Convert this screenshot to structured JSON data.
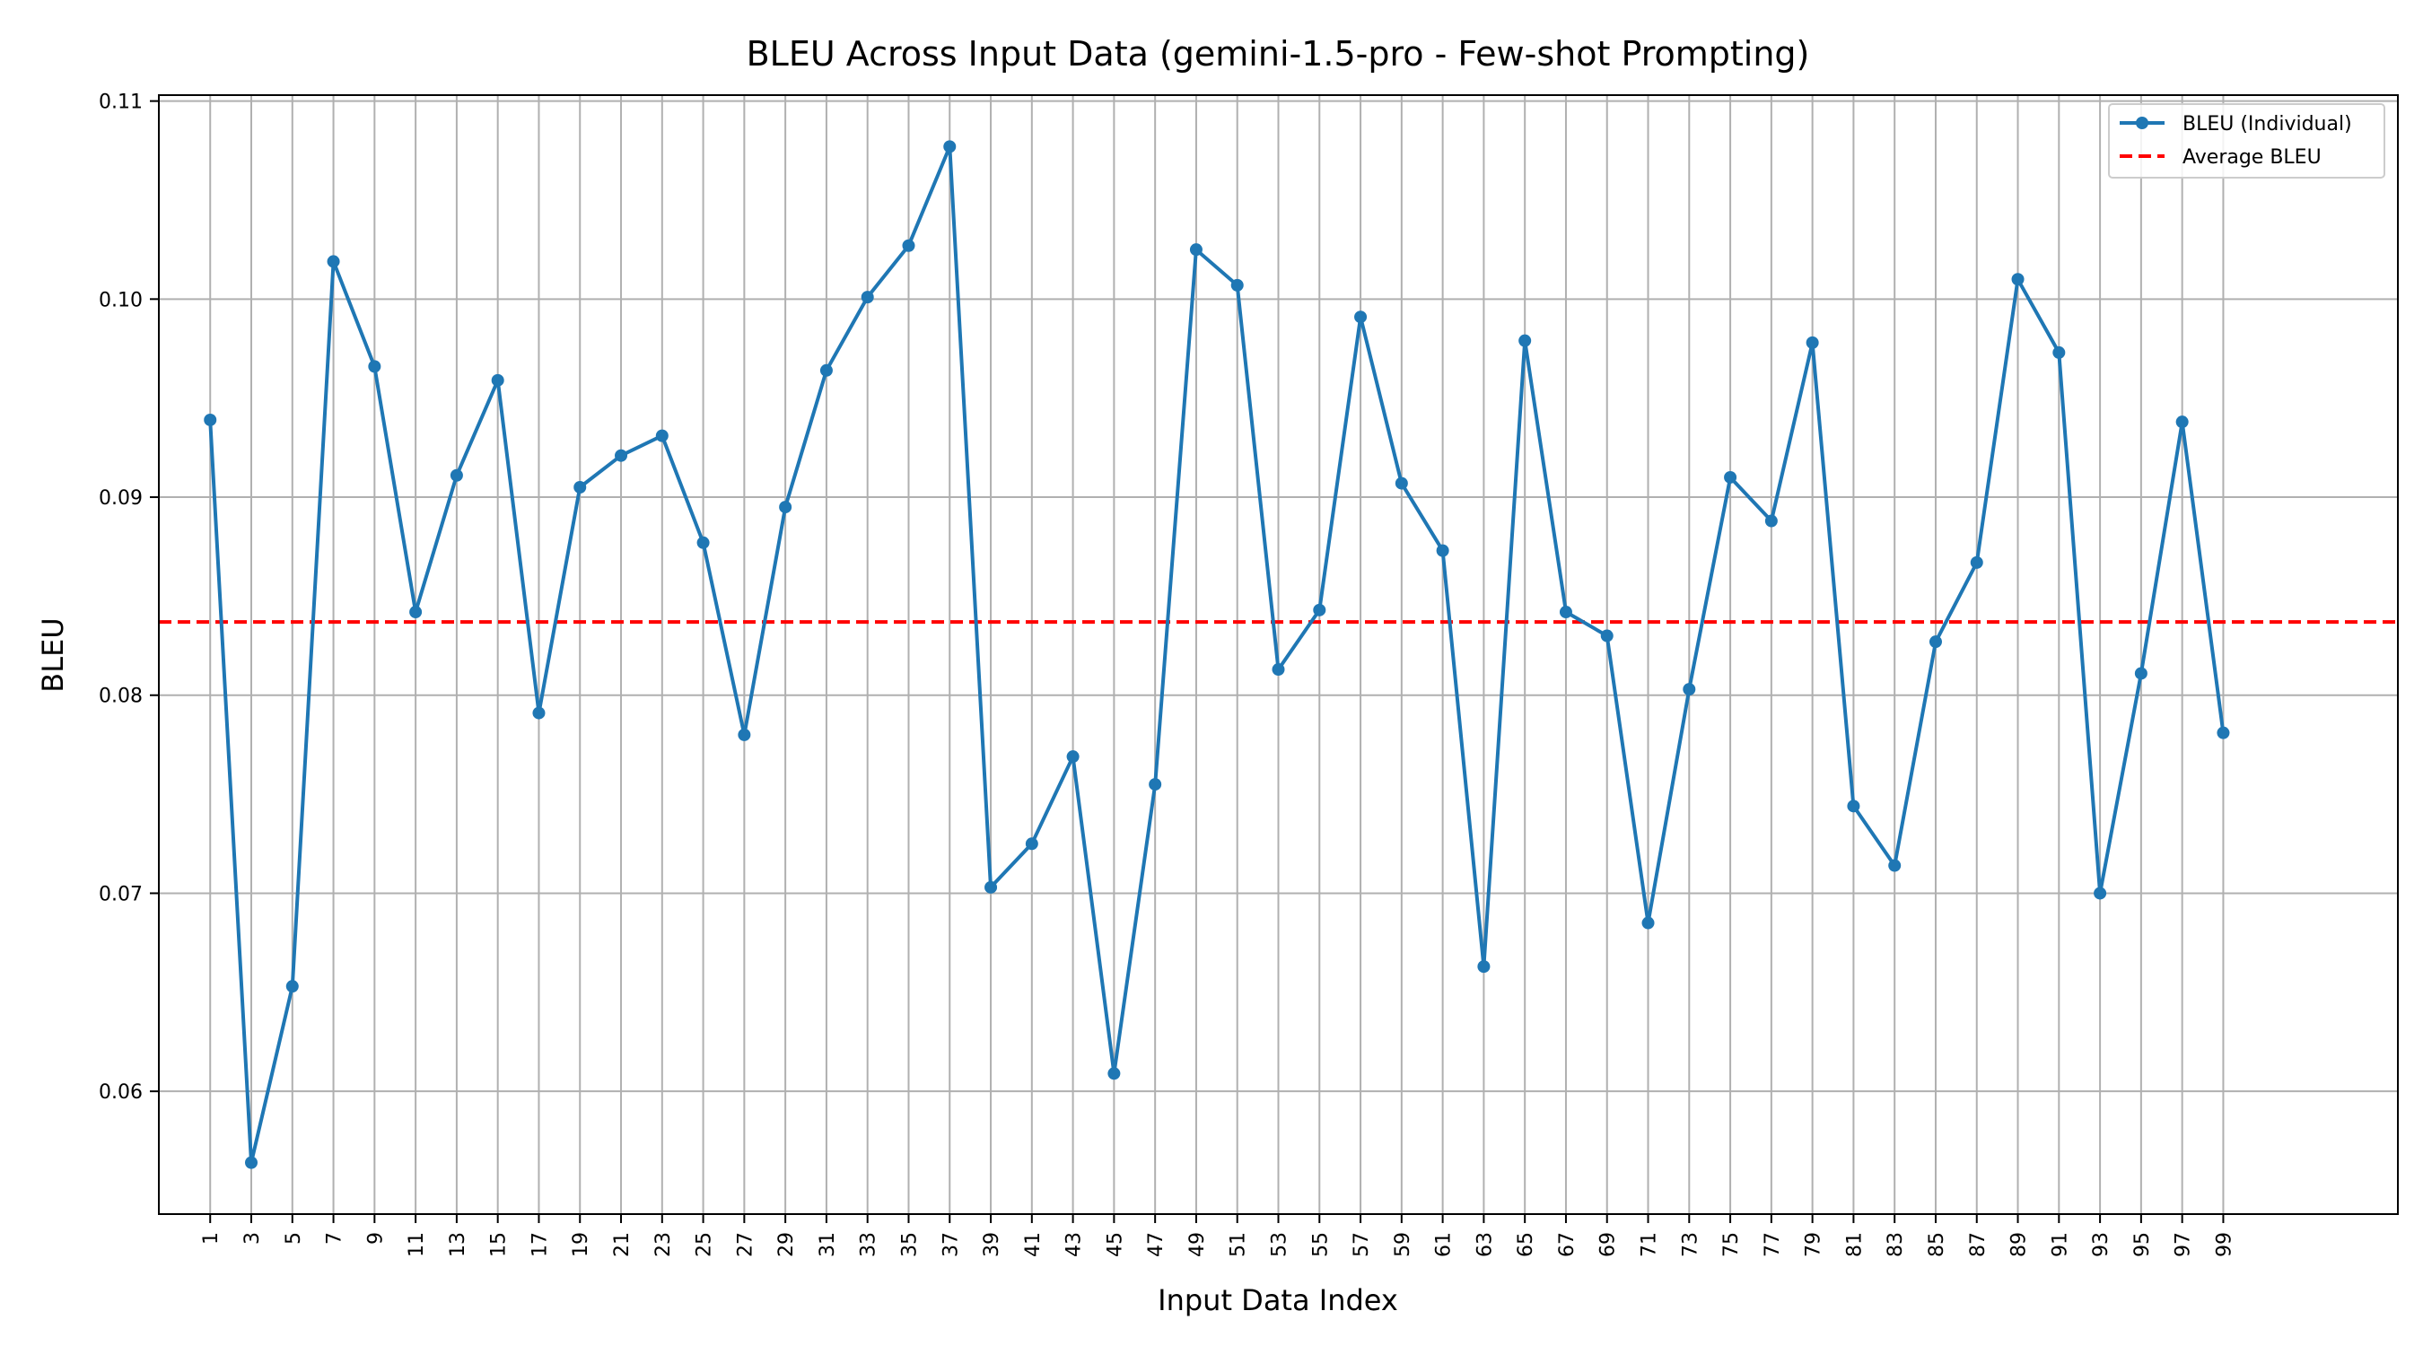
{
  "chart_data": {
    "type": "line",
    "title": "BLEU Across Input Data (gemini-1.5-pro - Few-shot Prompting)",
    "xlabel": "Input Data Index",
    "ylabel": "BLEU",
    "ylim": [
      0.0538,
      0.1103
    ],
    "xlim": [
      -1.5,
      107.5
    ],
    "grid": true,
    "legend_position": "top-right",
    "x_ticks": [
      1,
      3,
      5,
      7,
      9,
      11,
      13,
      15,
      17,
      19,
      21,
      23,
      25,
      27,
      29,
      31,
      33,
      35,
      37,
      39,
      41,
      43,
      45,
      47,
      49,
      51,
      53,
      55,
      57,
      59,
      61,
      63,
      65,
      67,
      69,
      71,
      73,
      75,
      77,
      79,
      81,
      83,
      85,
      87,
      89,
      91,
      93,
      95,
      97,
      99
    ],
    "y_ticks": [
      0.06,
      0.07,
      0.08,
      0.09,
      0.1,
      0.11
    ],
    "y_tick_labels": [
      "0.06",
      "0.07",
      "0.08",
      "0.09",
      "0.10",
      "0.11"
    ],
    "series": [
      {
        "name": "BLEU (Individual)",
        "color": "#1f77b4",
        "style": "solid-with-markers",
        "x": [
          1,
          3,
          5,
          7,
          9,
          11,
          13,
          15,
          17,
          19,
          21,
          23,
          25,
          27,
          29,
          31,
          33,
          35,
          37,
          39,
          41,
          43,
          45,
          47,
          49,
          51,
          53,
          55,
          57,
          59,
          61,
          63,
          65,
          67,
          69,
          71,
          73,
          75,
          77,
          79,
          81,
          83,
          85,
          87,
          89,
          91,
          93,
          95,
          97,
          99
        ],
        "values": [
          0.0939,
          0.0564,
          0.0653,
          0.1019,
          0.0966,
          0.0842,
          0.0911,
          0.0959,
          0.0791,
          0.0905,
          0.0921,
          0.0931,
          0.0877,
          0.078,
          0.0895,
          0.0964,
          0.1001,
          0.1027,
          0.1077,
          0.0703,
          0.0725,
          0.0769,
          0.0609,
          0.0755,
          0.1025,
          0.1007,
          0.0813,
          0.0843,
          0.0991,
          0.0907,
          0.0873,
          0.0663,
          0.0979,
          0.0842,
          0.083,
          0.0685,
          0.0803,
          0.091,
          0.0888,
          0.0978,
          0.0744,
          0.0714,
          0.0827,
          0.0867,
          0.101,
          0.0973,
          0.07,
          0.0811,
          0.0938,
          0.0781
        ]
      },
      {
        "name": "Average BLEU",
        "color": "#ff0000",
        "style": "dashed",
        "value": 0.0837
      }
    ]
  }
}
